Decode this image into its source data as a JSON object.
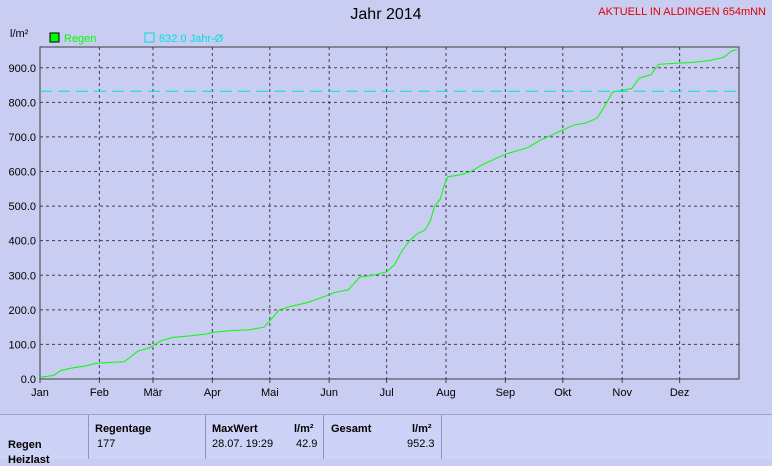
{
  "title": "Jahr 2014",
  "station": "AKTUELL IN ALDINGEN 654mNN",
  "colors": {
    "background": "#c9cdf1",
    "plot_bg": "#c9cdf1",
    "series": "#00ff00",
    "reference": "#00e0e0",
    "station": "#e00000"
  },
  "chart_data": {
    "type": "line",
    "title": "Jahr 2014",
    "ylabel": "l/m²",
    "xlabel": "",
    "ylim": [
      0,
      960
    ],
    "yticks": [
      0,
      100,
      200,
      300,
      400,
      500,
      600,
      700,
      800,
      900
    ],
    "ytick_labels": [
      "0.0",
      "100.0",
      "200.0",
      "300.0",
      "400.0",
      "500.0",
      "600.0",
      "700.0",
      "800.0",
      "900.0"
    ],
    "xticks": [
      "Jan",
      "Feb",
      "Mär",
      "Apr",
      "Mai",
      "Jun",
      "Jul",
      "Aug",
      "Sep",
      "Okt",
      "Nov",
      "Dez"
    ],
    "x_unit": "day of year",
    "grid": true,
    "legend": "top-left",
    "series": [
      {
        "name": "Regen",
        "color": "#00ff00",
        "points": [
          [
            1,
            5
          ],
          [
            8,
            10
          ],
          [
            12,
            25
          ],
          [
            18,
            32
          ],
          [
            25,
            38
          ],
          [
            30,
            45
          ],
          [
            38,
            48
          ],
          [
            45,
            50
          ],
          [
            52,
            80
          ],
          [
            58,
            90
          ],
          [
            64,
            110
          ],
          [
            70,
            120
          ],
          [
            80,
            125
          ],
          [
            88,
            130
          ],
          [
            92,
            135
          ],
          [
            100,
            140
          ],
          [
            110,
            142
          ],
          [
            118,
            150
          ],
          [
            122,
            175
          ],
          [
            126,
            200
          ],
          [
            132,
            210
          ],
          [
            140,
            220
          ],
          [
            148,
            235
          ],
          [
            155,
            250
          ],
          [
            162,
            258
          ],
          [
            168,
            295
          ],
          [
            175,
            300
          ],
          [
            182,
            310
          ],
          [
            186,
            330
          ],
          [
            190,
            370
          ],
          [
            194,
            400
          ],
          [
            198,
            420
          ],
          [
            202,
            430
          ],
          [
            205,
            460
          ],
          [
            207,
            500
          ],
          [
            210,
            520
          ],
          [
            212,
            560
          ],
          [
            214,
            585
          ],
          [
            220,
            590
          ],
          [
            226,
            600
          ],
          [
            232,
            620
          ],
          [
            238,
            635
          ],
          [
            244,
            650
          ],
          [
            250,
            660
          ],
          [
            256,
            670
          ],
          [
            262,
            690
          ],
          [
            268,
            705
          ],
          [
            274,
            720
          ],
          [
            280,
            735
          ],
          [
            286,
            740
          ],
          [
            292,
            755
          ],
          [
            296,
            790
          ],
          [
            300,
            830
          ],
          [
            305,
            835
          ],
          [
            310,
            840
          ],
          [
            314,
            870
          ],
          [
            320,
            880
          ],
          [
            324,
            910
          ],
          [
            330,
            912
          ],
          [
            340,
            915
          ],
          [
            350,
            920
          ],
          [
            358,
            930
          ],
          [
            362,
            948
          ],
          [
            365,
            952.3
          ]
        ]
      },
      {
        "name": "832.0 Jahr-Ø",
        "color": "#00e0e0",
        "dashed": true,
        "value": 832.0
      }
    ]
  },
  "stats": {
    "row_label": "Regen",
    "row_label2": "Heizlast",
    "regentage_header": "Regentage",
    "regentage_value": "177",
    "maxwert_header": "MaxWert",
    "maxwert_unit": "l/m²",
    "maxwert_time": "28.07.  19:29",
    "maxwert_value": "42.9",
    "gesamt_header": "Gesamt",
    "gesamt_unit": "l/m²",
    "gesamt_value": "952.3"
  }
}
